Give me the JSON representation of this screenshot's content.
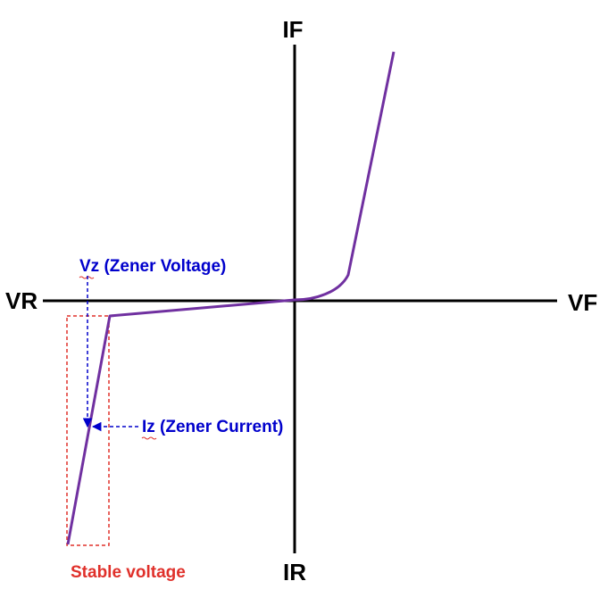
{
  "axes": {
    "positive_y_label": "IF",
    "negative_y_label": "IR",
    "positive_x_label": "VF",
    "negative_x_label": "VR"
  },
  "annotations": {
    "zener_voltage": "Vz (Zener Voltage)",
    "zener_current": "Iz (Zener Current)",
    "stable_region": "Stable voltage"
  },
  "colors": {
    "curve": "#7030A0",
    "annotation": "#0000CC",
    "region": "#E0302A",
    "axis": "#000000"
  }
}
